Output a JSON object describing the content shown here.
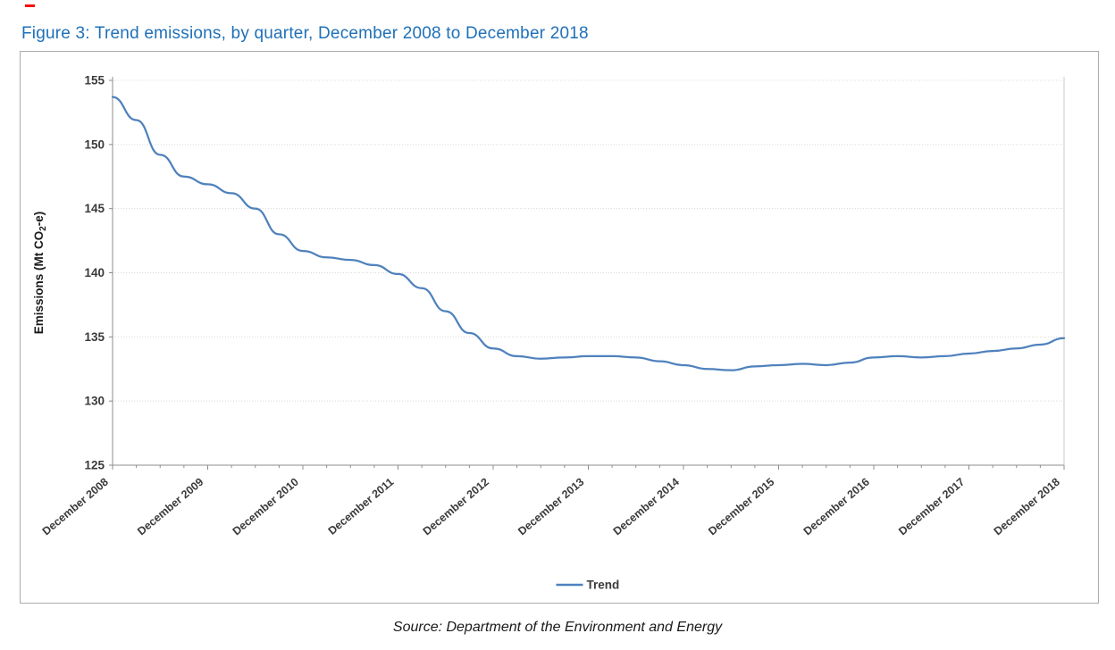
{
  "figure": {
    "title": "Figure 3: Trend emissions, by quarter, December 2008 to December 2018",
    "source": "Source: Department of the Environment and Energy"
  },
  "colors": {
    "title_blue": "#1f70b8",
    "line_blue": "#4f81bd",
    "gridline_gray": "#d8d8d8",
    "axis_gray": "#8c8c8c",
    "tick_text": "#3a3a3a",
    "red_mark": "#ff0000"
  },
  "chart_data": {
    "type": "line",
    "title": "",
    "xlabel": "",
    "ylabel": "Emissions (Mt CO2-e)",
    "ylabel_parts": [
      {
        "text": "Emissions (Mt CO"
      },
      {
        "text": "2",
        "subscript": true
      },
      {
        "text": "-e)"
      }
    ],
    "ylim": [
      125,
      155
    ],
    "y_ticks": [
      125,
      130,
      135,
      140,
      145,
      150,
      155
    ],
    "grid": "horizontal-dotted",
    "x_unit": "quarter",
    "x_major_every": 4,
    "x_tick_labels": [
      "December 2008",
      "December 2009",
      "December 2010",
      "December 2011",
      "December 2012",
      "December 2013",
      "December 2014",
      "December 2015",
      "December 2016",
      "December 2017",
      "December 2018"
    ],
    "legend": {
      "position": "bottom",
      "entries": [
        "Trend"
      ]
    },
    "series": [
      {
        "name": "Trend",
        "color": "#4f81bd",
        "values": [
          153.7,
          151.9,
          149.2,
          147.5,
          146.9,
          146.2,
          145.0,
          143.0,
          141.7,
          141.2,
          141.0,
          140.6,
          139.9,
          138.8,
          137.0,
          135.3,
          134.1,
          133.5,
          133.3,
          133.4,
          133.5,
          133.5,
          133.4,
          133.1,
          132.8,
          132.5,
          132.4,
          132.7,
          132.8,
          132.9,
          132.8,
          133.0,
          133.4,
          133.5,
          133.4,
          133.5,
          133.7,
          133.9,
          134.1,
          134.4,
          134.9
        ]
      }
    ]
  }
}
